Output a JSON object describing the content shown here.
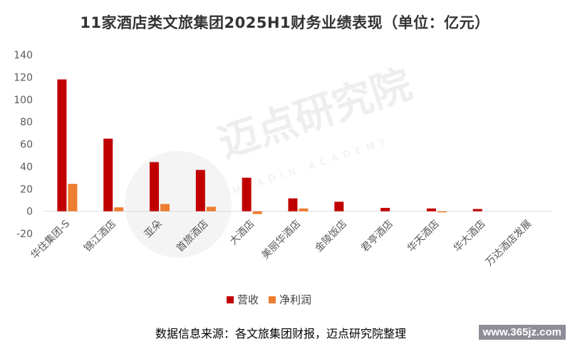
{
  "chart_data": {
    "type": "bar",
    "title": "11家酒店类文旅集团2025H1财务业绩表现（单位：亿元）",
    "categories": [
      "华住集团-S",
      "锦江酒店",
      "亚朵",
      "首旅酒店",
      "大酒店",
      "美丽华酒店",
      "金陵饭店",
      "君亭酒店",
      "华天酒店",
      "华大酒店",
      "万达酒店发展"
    ],
    "series": [
      {
        "name": "营收",
        "color": "#C00000",
        "values": [
          118,
          65,
          44,
          37,
          30,
          11.5,
          8.5,
          3,
          2.5,
          2,
          0
        ]
      },
      {
        "name": "净利润",
        "color": "#ED7D31",
        "values": [
          24.5,
          3.5,
          6.5,
          4,
          -2.5,
          2.5,
          0,
          0,
          -1,
          0,
          0
        ]
      }
    ],
    "ylim": [
      -20,
      140
    ],
    "yticks": [
      -20,
      0,
      20,
      40,
      60,
      80,
      100,
      120,
      140
    ],
    "legend_position": "bottom",
    "grid": false
  },
  "watermark": {
    "text": "迈点研究院",
    "subtext": "MEADIN ACADEMY"
  },
  "footer": {
    "source": "数据信息来源：各文旅集团财报，迈点研究院整理",
    "site": "www.365jz.com"
  }
}
